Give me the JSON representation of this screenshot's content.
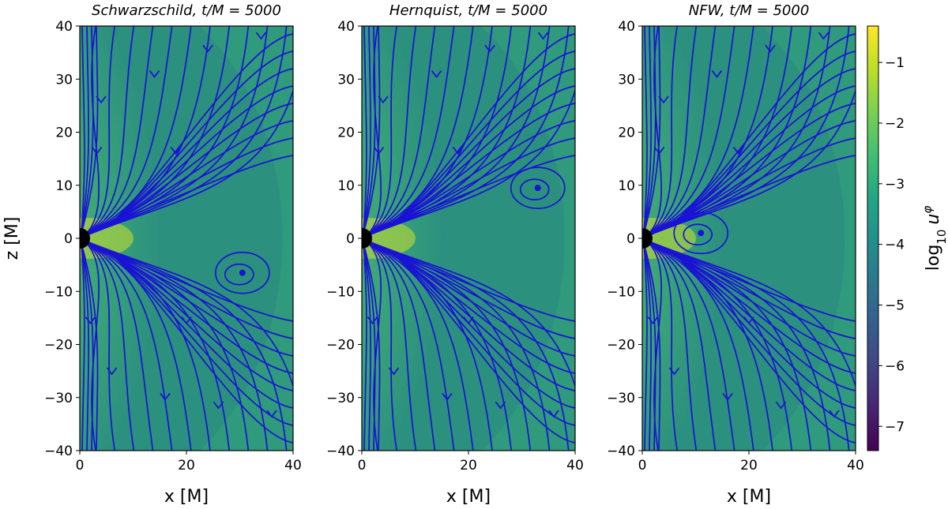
{
  "chart_data": {
    "type": "heatmap",
    "panels": [
      {
        "name": "schwarzschild",
        "title": "Schwarzschild, t/M = 5000",
        "title_model": "Schwarzschild,",
        "title_time": "t/M = 5000",
        "show_ylabel": true,
        "vortices": [
          {
            "x": 30.5,
            "z": -6.5
          }
        ]
      },
      {
        "name": "hernquist",
        "title": "Hernquist, t/M = 5000",
        "title_model": "Hernquist,",
        "title_time": "t/M = 5000",
        "show_ylabel": false,
        "vortices": [
          {
            "x": 33,
            "z": 9.5
          }
        ]
      },
      {
        "name": "nfw",
        "title": "NFW, t/M = 5000",
        "title_model": "NFW,",
        "title_time": "t/M = 5000",
        "show_ylabel": false,
        "vortices": [
          {
            "x": 11,
            "z": 1
          }
        ]
      }
    ],
    "xlabel": "x [M]",
    "ylabel": "z [M]",
    "xlim": [
      0,
      40
    ],
    "ylim": [
      -40,
      40
    ],
    "xticks": [
      0,
      20,
      40
    ],
    "yticks": [
      40,
      30,
      20,
      10,
      0,
      -10,
      -20,
      -30,
      -40
    ],
    "colorbar": {
      "label": "log10 u^phi",
      "label_base": "log",
      "label_sub": "10",
      "label_var": "u",
      "label_sup": "φ",
      "min": -7.4,
      "max": -0.4,
      "ticks": [
        -1,
        -2,
        -3,
        -4,
        -5,
        -6,
        -7
      ],
      "colormap": "viridis"
    },
    "streamline_color": "#1a12d4"
  }
}
